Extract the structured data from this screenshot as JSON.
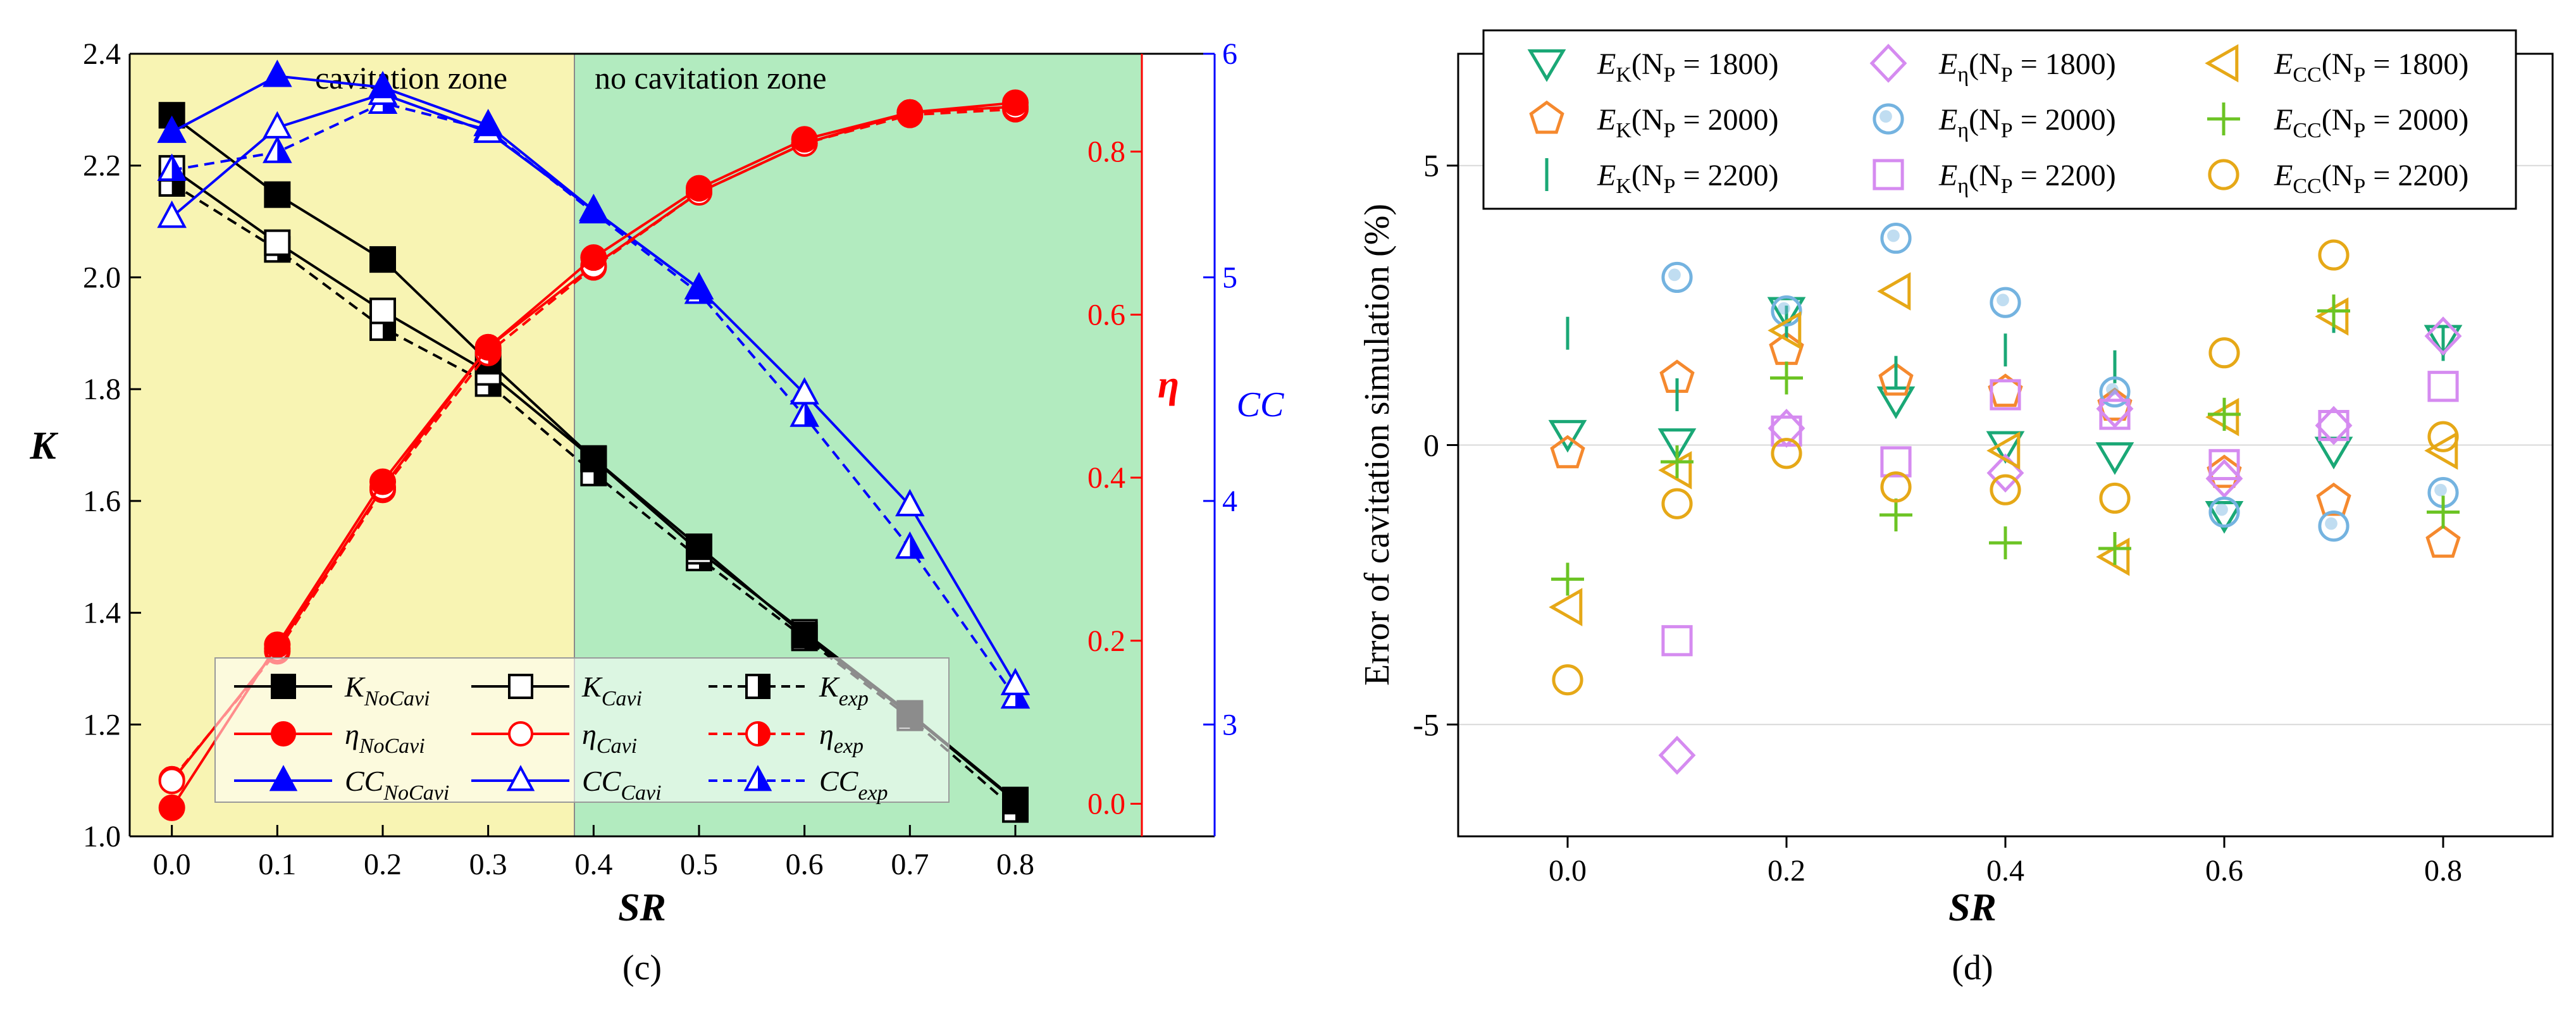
{
  "colors": {
    "k_line": "#000000",
    "eta": "#ff0000",
    "cc": "#0000ff",
    "cavitation_zone": "#f8f4b3",
    "no_cavitation_zone": "#b2ebbf",
    "EK": "#1aa876",
    "Eeta": "#d58bf0",
    "Eeta2": "#74b3e0",
    "Ecc": "#e6a817",
    "Ecc2": "#6cc424",
    "orange": "#f5892e",
    "grid": "#d8d8d8"
  },
  "chart_data": [
    {
      "type": "line",
      "panel_label": "(c)",
      "xlabel": "SR",
      "ylabel_left": "K",
      "ylabel_right_inner": "η",
      "ylabel_right_outer": "CC",
      "x": [
        0.0,
        0.1,
        0.2,
        0.3,
        0.4,
        0.5,
        0.6,
        0.7,
        0.8
      ],
      "xticks": [
        "0.0",
        "0.1",
        "0.2",
        "0.3",
        "0.4",
        "0.5",
        "0.6",
        "0.7",
        "0.8"
      ],
      "xlim": [
        -0.04,
        0.92
      ],
      "axes": {
        "K": {
          "lim": [
            1.0,
            2.4
          ],
          "ticks": [
            "1.0",
            "1.2",
            "1.4",
            "1.6",
            "1.8",
            "2.0",
            "2.2",
            "2.4"
          ]
        },
        "eta": {
          "lim": [
            -0.04,
            0.92
          ],
          "ticks": [
            "0.0",
            "0.2",
            "0.4",
            "0.6",
            "0.8"
          ]
        },
        "CC": {
          "lim": [
            2.5,
            6.0
          ],
          "ticks": [
            "3",
            "4",
            "5",
            "6"
          ]
        }
      },
      "zones": [
        {
          "label": "cavitation zone",
          "from": -0.04,
          "to": 0.35
        },
        {
          "label": "no cavitation zone",
          "from": 0.35,
          "to": 0.92
        }
      ],
      "series": [
        {
          "id": "K_nocavi",
          "axis": "K",
          "color_key": "k_line",
          "dash": "solid",
          "marker": "square",
          "fill": "full",
          "legend_main": "K",
          "legend_sub": "NoCavi",
          "values": [
            2.29,
            2.148,
            2.032,
            1.85,
            1.676,
            1.518,
            1.36,
            1.218,
            1.063
          ]
        },
        {
          "id": "K_cavi",
          "axis": "K",
          "color_key": "k_line",
          "dash": "solid",
          "marker": "square",
          "fill": "none",
          "legend_main": "K",
          "legend_sub": "Cavi",
          "values": [
            2.195,
            2.062,
            1.94,
            1.83,
            1.675,
            1.51,
            1.365,
            1.22,
            1.065
          ]
        },
        {
          "id": "K_exp",
          "axis": "K",
          "color_key": "k_line",
          "dash": "dashed",
          "marker": "square",
          "fill": "half",
          "legend_main": "K",
          "legend_sub": "exp",
          "values": [
            2.168,
            2.05,
            1.91,
            1.81,
            1.65,
            1.498,
            1.355,
            1.212,
            1.048
          ]
        },
        {
          "id": "eta_nocavi",
          "axis": "eta",
          "color_key": "eta",
          "dash": "solid",
          "marker": "circle",
          "fill": "full",
          "legend_main": "η",
          "legend_sub": "NoCavi",
          "values": [
            -0.005,
            0.195,
            0.395,
            0.56,
            0.67,
            0.755,
            0.815,
            0.848,
            0.86
          ]
        },
        {
          "id": "eta_cavi",
          "axis": "eta",
          "color_key": "eta",
          "dash": "solid",
          "marker": "circle",
          "fill": "none",
          "legend_main": "η",
          "legend_sub": "Cavi",
          "values": [
            0.028,
            0.19,
            0.388,
            0.56,
            0.66,
            0.75,
            0.81,
            0.848,
            0.855
          ]
        },
        {
          "id": "eta_exp",
          "axis": "eta",
          "color_key": "eta",
          "dash": "dashed",
          "marker": "circle",
          "fill": "half",
          "legend_main": "η",
          "legend_sub": "exp",
          "values": [
            0.03,
            0.187,
            0.385,
            0.553,
            0.658,
            0.75,
            0.81,
            0.845,
            0.852
          ]
        },
        {
          "id": "cc_nocavi",
          "axis": "CC",
          "color_key": "cc",
          "dash": "solid",
          "marker": "triangle",
          "fill": "full",
          "legend_main": "CC",
          "legend_sub": "NoCavi",
          "values": [
            5.65,
            5.9,
            5.85,
            5.68,
            5.3,
            4.95,
            null,
            null,
            null
          ]
        },
        {
          "id": "cc_cavi",
          "axis": "CC",
          "color_key": "cc",
          "dash": "solid",
          "marker": "triangle",
          "fill": "none",
          "legend_main": "CC",
          "legend_sub": "Cavi",
          "values": [
            5.27,
            5.67,
            5.82,
            5.65,
            5.3,
            4.95,
            4.48,
            3.98,
            3.18
          ]
        },
        {
          "id": "cc_exp",
          "axis": "CC",
          "color_key": "cc",
          "dash": "dashed",
          "marker": "triangle",
          "fill": "half",
          "legend_main": "CC",
          "legend_sub": "exp",
          "values": [
            5.48,
            5.56,
            5.78,
            5.66,
            5.29,
            4.93,
            4.38,
            3.79,
            3.12
          ]
        }
      ]
    },
    {
      "type": "scatter",
      "panel_label": "(d)",
      "xlabel": "SR",
      "ylabel": "Error of cavitation simulation (%)",
      "x": [
        0.0,
        0.1,
        0.2,
        0.3,
        0.4,
        0.5,
        0.6,
        0.7,
        0.8
      ],
      "xticks": [
        "0.0",
        "0.2",
        "0.4",
        "0.6",
        "0.8"
      ],
      "xlim": [
        -0.1,
        0.9
      ],
      "ylim": [
        -7,
        7
      ],
      "yticks": [
        "-5",
        "0",
        "5"
      ],
      "gridlines_y": [
        -5,
        0,
        5
      ],
      "series": [
        {
          "id": "EK_1800",
          "marker": "tri-down",
          "color_key": "EK",
          "legend_main": "E",
          "legend_sub": "K",
          "legend_tail": "(N",
          "legend_np": "P",
          "legend_val": " = 1800)",
          "values": [
            0.2,
            0.05,
            2.4,
            0.8,
            0.0,
            -0.2,
            -1.25,
            -0.1,
            1.9
          ]
        },
        {
          "id": "EK_2000",
          "marker": "pentagon",
          "color_key": "orange",
          "legend_main": "E",
          "legend_sub": "K",
          "legend_tail": "(N",
          "legend_np": "P",
          "legend_val": " = 2000)",
          "values": [
            -0.15,
            1.2,
            1.7,
            1.15,
            0.95,
            0.7,
            -0.5,
            -1.0,
            -1.75
          ]
        },
        {
          "id": "EK_2200",
          "marker": "vline",
          "color_key": "EK",
          "legend_main": "E",
          "legend_sub": "K",
          "legend_tail": "(N",
          "legend_np": "P",
          "legend_val": " = 2200)",
          "values": [
            2.0,
            0.9,
            2.2,
            1.3,
            1.7,
            1.4,
            0.55,
            2.3,
            1.8
          ]
        },
        {
          "id": "Eeta_1800",
          "marker": "diamond",
          "color_key": "Eeta",
          "legend_main": "E",
          "legend_sub": "η",
          "legend_tail": "(N",
          "legend_np": "P",
          "legend_val": " = 1800)",
          "values": [
            null,
            -5.55,
            0.3,
            null,
            -0.5,
            0.65,
            -0.6,
            0.35,
            1.95
          ]
        },
        {
          "id": "Eeta_2000",
          "marker": "circle-shade",
          "color_key": "Eeta2",
          "legend_main": "E",
          "legend_sub": "η",
          "legend_tail": "(N",
          "legend_np": "P",
          "legend_val": " = 2000)",
          "values": [
            null,
            3.0,
            2.4,
            3.7,
            2.55,
            0.95,
            -1.2,
            -1.45,
            -0.85
          ]
        },
        {
          "id": "Eeta_2200",
          "marker": "square",
          "color_key": "Eeta",
          "legend_main": "E",
          "legend_sub": "η",
          "legend_tail": "(N",
          "legend_np": "P",
          "legend_val": " = 2200)",
          "values": [
            null,
            -3.5,
            0.25,
            -0.3,
            0.9,
            0.55,
            -0.35,
            0.35,
            1.05
          ]
        },
        {
          "id": "Ecc_1800",
          "marker": "tri-left",
          "color_key": "Ecc",
          "legend_main": "E",
          "legend_sub": "CC",
          "legend_tail": "(N",
          "legend_np": "P",
          "legend_val": " = 1800)",
          "values": [
            -2.9,
            -0.45,
            2.05,
            2.75,
            -0.1,
            -2.0,
            0.5,
            2.3,
            -0.1
          ]
        },
        {
          "id": "Ecc_2000",
          "marker": "plus",
          "color_key": "Ecc2",
          "legend_main": "E",
          "legend_sub": "CC",
          "legend_tail": "(N",
          "legend_np": "P",
          "legend_val": " = 2000)",
          "values": [
            -2.4,
            -0.3,
            1.2,
            -1.25,
            -1.75,
            -1.85,
            0.55,
            2.4,
            -1.2
          ]
        },
        {
          "id": "Ecc_2200",
          "marker": "circle",
          "color_key": "Ecc",
          "legend_main": "E",
          "legend_sub": "CC",
          "legend_tail": "(N",
          "legend_np": "P",
          "legend_val": " = 2200)",
          "values": [
            -4.2,
            -1.05,
            -0.15,
            -0.75,
            -0.8,
            -0.95,
            1.65,
            3.4,
            0.15
          ]
        }
      ]
    }
  ]
}
